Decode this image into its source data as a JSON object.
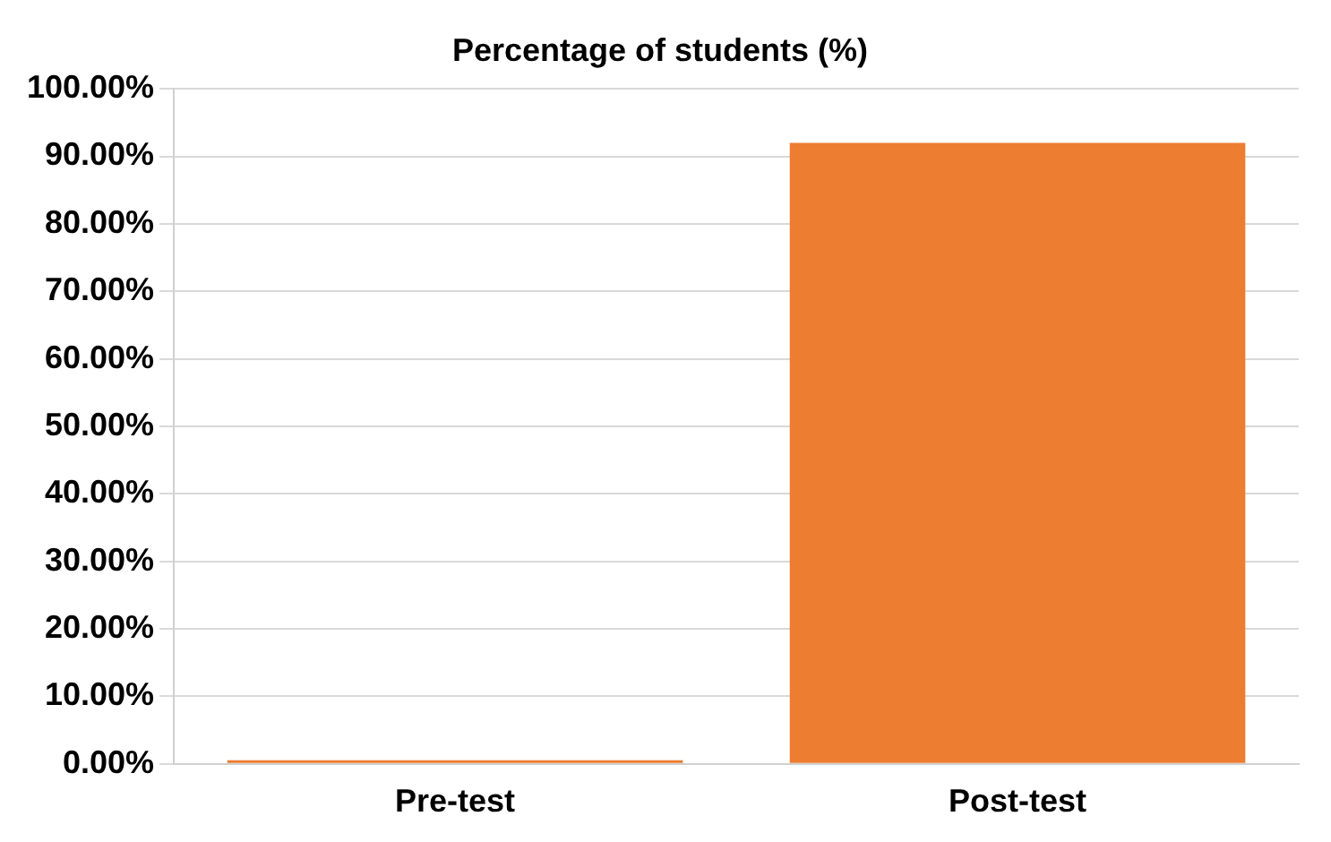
{
  "chart_data": {
    "type": "bar",
    "title": "Percentage of students (%)",
    "categories": [
      "Pre-test",
      "Post-test"
    ],
    "values": [
      0,
      92
    ],
    "color": "#ed7d31",
    "ylim": [
      0,
      100
    ],
    "yticks": [
      {
        "value": 0,
        "label": "0.00%"
      },
      {
        "value": 10,
        "label": "10.00%"
      },
      {
        "value": 20,
        "label": "20.00%"
      },
      {
        "value": 30,
        "label": "30.00%"
      },
      {
        "value": 40,
        "label": "40.00%"
      },
      {
        "value": 50,
        "label": "50.00%"
      },
      {
        "value": 60,
        "label": "60.00%"
      },
      {
        "value": 70,
        "label": "70.00%"
      },
      {
        "value": 80,
        "label": "80.00%"
      },
      {
        "value": 90,
        "label": "90.00%"
      },
      {
        "value": 100,
        "label": "100.00%"
      }
    ],
    "grid": "y"
  }
}
